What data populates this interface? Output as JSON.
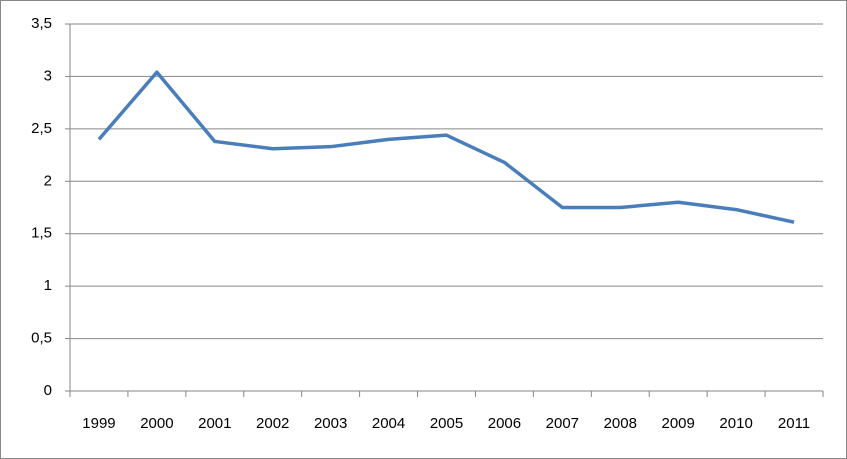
{
  "chart_data": {
    "type": "line",
    "categories": [
      "1999",
      "2000",
      "2001",
      "2002",
      "2003",
      "2004",
      "2005",
      "2006",
      "2007",
      "2008",
      "2009",
      "2010",
      "2011"
    ],
    "values": [
      2.4,
      3.04,
      2.38,
      2.31,
      2.33,
      2.4,
      2.44,
      2.18,
      1.75,
      1.75,
      1.8,
      1.73,
      1.61
    ],
    "color": "#4a7ebb",
    "ylim": [
      0,
      3.5
    ],
    "yticks": [
      0,
      {
        "value": 0.5,
        "label": "0,5"
      },
      1,
      {
        "value": 1.5,
        "label": "1,5"
      },
      2,
      {
        "value": 2.5,
        "label": "2,5"
      },
      3,
      {
        "value": 3.5,
        "label": "3,5"
      }
    ],
    "grid": true
  }
}
